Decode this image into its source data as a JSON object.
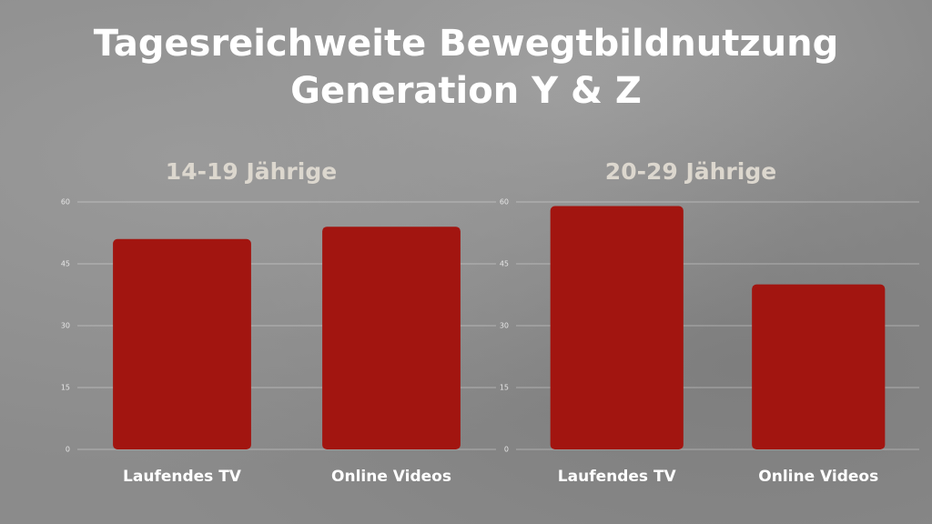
{
  "title": "Tagesreichweite Bewegtbildnutzung Generation Y & Z",
  "chart_data": [
    {
      "type": "bar",
      "title": "14-19 Jährige",
      "categories": [
        "Laufendes TV",
        "Online Videos"
      ],
      "values": [
        51,
        54
      ],
      "color": "#a21510",
      "ylim": [
        0,
        60
      ],
      "yticks": [
        0,
        15,
        30,
        45,
        60
      ],
      "grid": true
    },
    {
      "type": "bar",
      "title": "20-29 Jährige",
      "categories": [
        "Laufendes TV",
        "Online Videos"
      ],
      "values": [
        59,
        40
      ],
      "color": "#a21510",
      "ylim": [
        0,
        60
      ],
      "yticks": [
        0,
        15,
        30,
        45,
        60
      ],
      "grid": true
    }
  ]
}
